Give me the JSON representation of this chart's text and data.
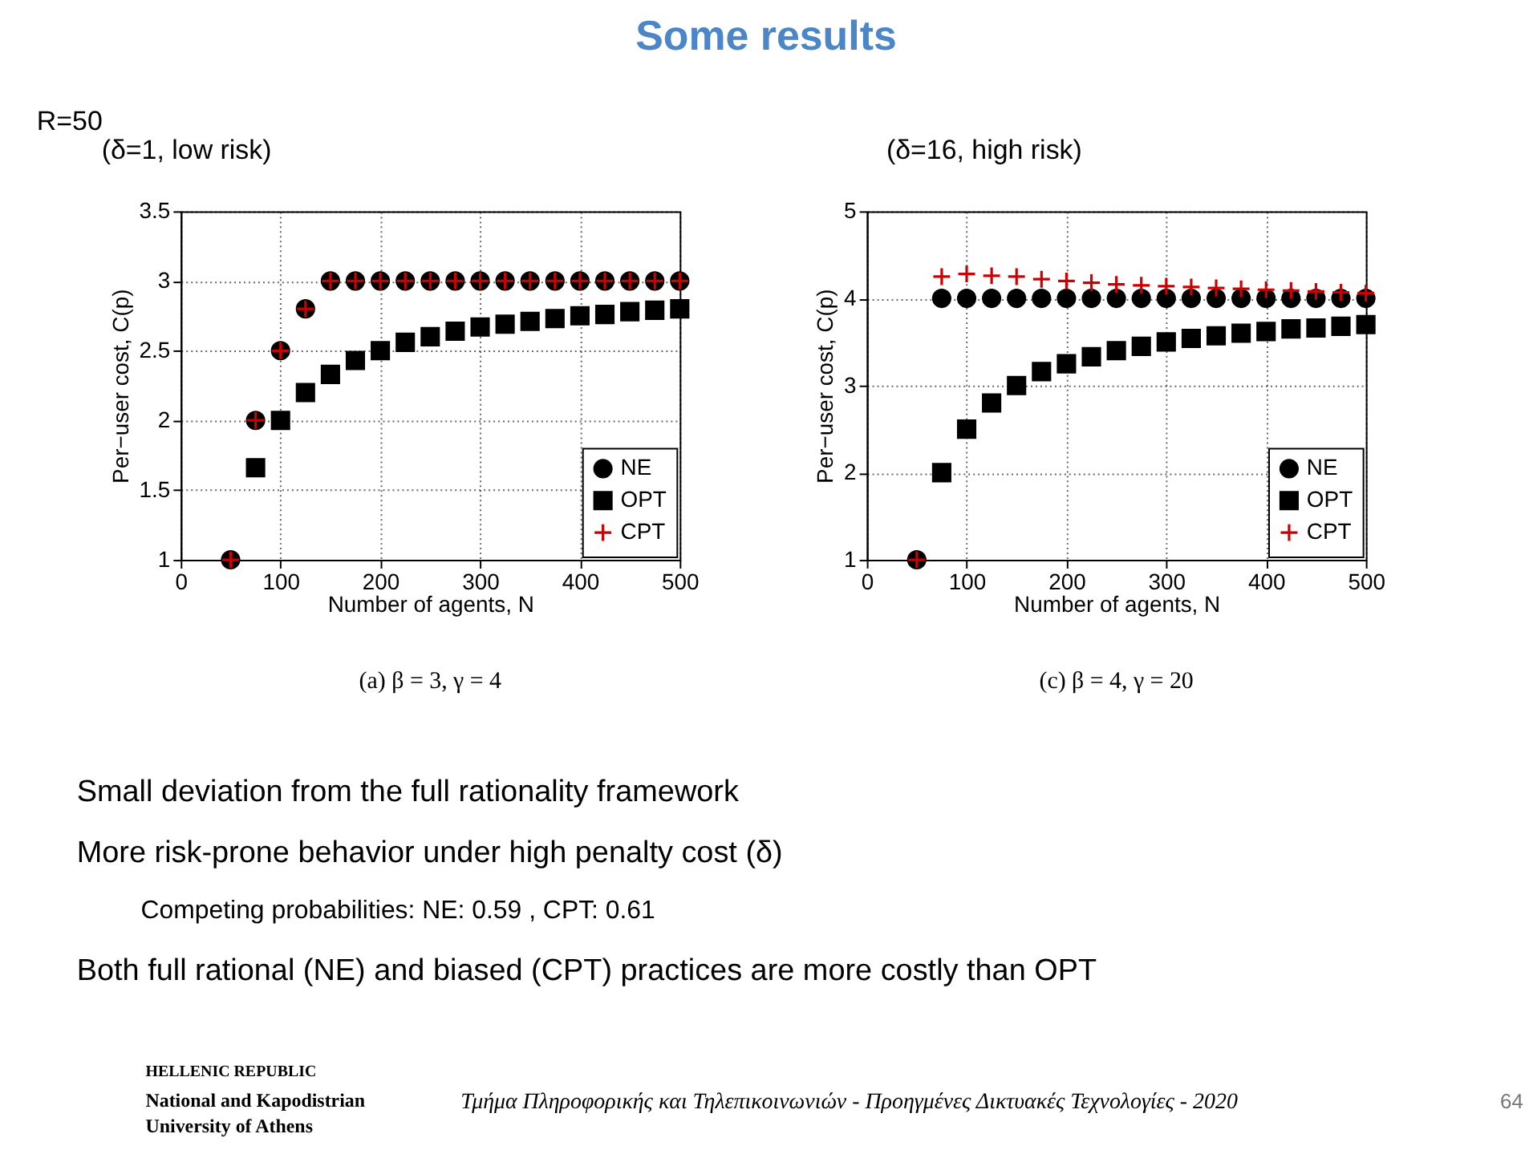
{
  "chart_data": [
    {
      "type": "scatter",
      "title": "(δ=1, low risk)",
      "xlabel": "Number of agents, N",
      "ylabel": "Per−user cost, C(p)",
      "x": [
        50,
        75,
        100,
        125,
        150,
        175,
        200,
        225,
        250,
        275,
        300,
        325,
        350,
        375,
        400,
        425,
        450,
        475,
        500
      ],
      "series": [
        {
          "name": "NE",
          "color": "#000000",
          "marker": "circle",
          "values": [
            1,
            2,
            2.5,
            2.8,
            3,
            3,
            3,
            3,
            3,
            3,
            3,
            3,
            3,
            3,
            3,
            3,
            3,
            3,
            3
          ]
        },
        {
          "name": "OPT",
          "color": "#000000",
          "marker": "square",
          "values": [
            null,
            1.66,
            2,
            2.2,
            2.33,
            2.43,
            2.5,
            2.56,
            2.6,
            2.64,
            2.67,
            2.69,
            2.71,
            2.73,
            2.75,
            2.76,
            2.78,
            2.79,
            2.8
          ]
        },
        {
          "name": "CPT",
          "color": "#cc0000",
          "marker": "cross",
          "values": [
            1,
            2,
            2.5,
            2.8,
            3,
            3,
            3,
            3,
            3,
            3,
            3,
            3,
            3,
            3,
            3,
            3,
            3,
            3,
            3
          ]
        }
      ],
      "xlim": [
        0,
        500
      ],
      "xticks": [
        0,
        100,
        200,
        300,
        400,
        500
      ],
      "ylim": [
        1,
        3.5
      ],
      "yticks": [
        1,
        1.5,
        2,
        2.5,
        3,
        3.5
      ],
      "grid": true,
      "legend": "bottom right",
      "annotations": [
        "Some results",
        "R=50",
        "(a) β = 3, γ = 4",
        "Small deviation from the full rationality framework",
        "More risk-prone behavior under high penalty cost (δ)",
        "Competing probabilities: NE: 0.59 , CPT: 0.61",
        "Both full rational (NE) and biased (CPT) practices are more costly than OPT",
        "HELLENIC REPUBLIC",
        "National and Kapodistrian",
        "University of Athens",
        "Τμήμα Πληροφορικής και Τηλεπικοινωνιών - Προηγμένες Δικτυακές Τεχνολογίες - 2020",
        "64"
      ]
    },
    {
      "type": "scatter",
      "title": "(δ=16, high risk)",
      "xlabel": "Number of agents, N",
      "ylabel": "Per−user cost, C(p)",
      "x": [
        50,
        75,
        100,
        125,
        150,
        175,
        200,
        225,
        250,
        275,
        300,
        325,
        350,
        375,
        400,
        425,
        450,
        475,
        500
      ],
      "series": [
        {
          "name": "NE",
          "color": "#000000",
          "marker": "circle",
          "values": [
            1,
            4,
            4,
            4,
            4,
            4,
            4,
            4,
            4,
            4,
            4,
            4,
            4,
            4,
            4,
            4,
            4,
            4,
            4
          ]
        },
        {
          "name": "OPT",
          "color": "#000000",
          "marker": "square",
          "values": [
            null,
            2,
            2.5,
            2.8,
            3,
            3.16,
            3.25,
            3.33,
            3.4,
            3.45,
            3.5,
            3.54,
            3.57,
            3.6,
            3.62,
            3.65,
            3.66,
            3.68,
            3.7
          ]
        },
        {
          "name": "CPT",
          "color": "#cc0000",
          "marker": "cross",
          "values": [
            1,
            4.25,
            4.28,
            4.26,
            4.25,
            4.22,
            4.2,
            4.18,
            4.16,
            4.15,
            4.14,
            4.13,
            4.12,
            4.11,
            4.1,
            4.09,
            4.08,
            4.07,
            4.06
          ]
        }
      ],
      "xlim": [
        0,
        500
      ],
      "xticks": [
        0,
        100,
        200,
        300,
        400,
        500
      ],
      "ylim": [
        1,
        5
      ],
      "yticks": [
        1,
        2,
        3,
        4,
        5
      ],
      "grid": true,
      "legend": "bottom right",
      "annotations": [
        "(c) β = 4, γ = 20"
      ]
    }
  ]
}
